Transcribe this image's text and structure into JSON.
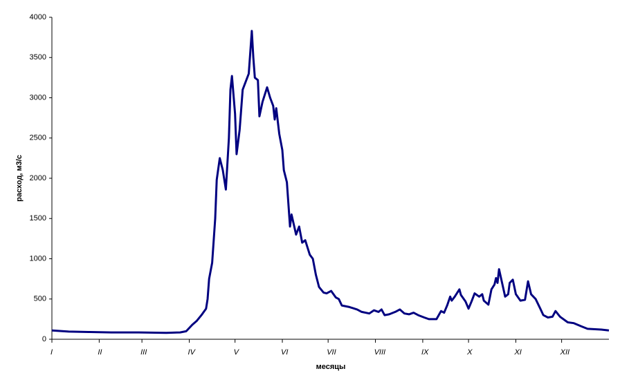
{
  "chart_data": {
    "type": "line",
    "ylabel": "расход, м3/с",
    "xlabel": "месяцы",
    "color": "#000080",
    "x": [
      0,
      11,
      25,
      39,
      57,
      75,
      84,
      88,
      92,
      95,
      98,
      101,
      102,
      103,
      105,
      107,
      108,
      110,
      112,
      114,
      116,
      117,
      118,
      120,
      121,
      123,
      125,
      127,
      129,
      131,
      132,
      133,
      135,
      136,
      138,
      141,
      143,
      145,
      146,
      147,
      149,
      151,
      152,
      154,
      156,
      157,
      160,
      162,
      164,
      166,
      169,
      171,
      173,
      175,
      178,
      180,
      183,
      186,
      188,
      190,
      195,
      200,
      203,
      208,
      211,
      214,
      216,
      218,
      221,
      225,
      228,
      231,
      234,
      237,
      240,
      244,
      247,
      252,
      255,
      257,
      259,
      261,
      262,
      264,
      267,
      268,
      271,
      273,
      275,
      277,
      280,
      282,
      283,
      286,
      288,
      290,
      291,
      292,
      293,
      295,
      297,
      299,
      300,
      302,
      304,
      307,
      310,
      312,
      314,
      317,
      320,
      322,
      325,
      328,
      330,
      333,
      338,
      342,
      347,
      351,
      360,
      365
    ],
    "values": [
      110,
      95,
      90,
      85,
      85,
      80,
      85,
      100,
      180,
      230,
      300,
      380,
      500,
      750,
      950,
      1500,
      1980,
      2250,
      2100,
      1860,
      2500,
      3100,
      3270,
      2800,
      2300,
      2600,
      3100,
      3200,
      3300,
      3830,
      3500,
      3250,
      3220,
      2770,
      2950,
      3130,
      3000,
      2900,
      2730,
      2870,
      2550,
      2350,
      2100,
      1950,
      1400,
      1550,
      1300,
      1400,
      1200,
      1230,
      1050,
      1000,
      800,
      650,
      580,
      570,
      600,
      520,
      500,
      420,
      400,
      370,
      340,
      320,
      360,
      340,
      370,
      300,
      310,
      340,
      370,
      320,
      310,
      330,
      300,
      270,
      250,
      250,
      350,
      330,
      420,
      530,
      480,
      530,
      620,
      550,
      470,
      380,
      470,
      570,
      530,
      560,
      480,
      430,
      620,
      680,
      760,
      700,
      870,
      700,
      530,
      560,
      700,
      740,
      560,
      480,
      490,
      720,
      560,
      500,
      380,
      300,
      270,
      280,
      350,
      280,
      210,
      200,
      160,
      130,
      120,
      110
    ],
    "xlim": [
      0,
      365
    ],
    "xticks": [
      {
        "value": 0,
        "label": "I"
      },
      {
        "value": 31,
        "label": "II"
      },
      {
        "value": 59,
        "label": "III"
      },
      {
        "value": 90,
        "label": "IV"
      },
      {
        "value": 120,
        "label": "V"
      },
      {
        "value": 151,
        "label": "VI"
      },
      {
        "value": 181,
        "label": "VII"
      },
      {
        "value": 212,
        "label": "VIII"
      },
      {
        "value": 243,
        "label": "IX"
      },
      {
        "value": 273,
        "label": "X"
      },
      {
        "value": 304,
        "label": "XI"
      },
      {
        "value": 334,
        "label": "XII"
      }
    ],
    "ylim": [
      0,
      4000
    ],
    "yticks": [
      0,
      500,
      1000,
      1500,
      2000,
      2500,
      3000,
      3500,
      4000
    ],
    "grid": false
  }
}
